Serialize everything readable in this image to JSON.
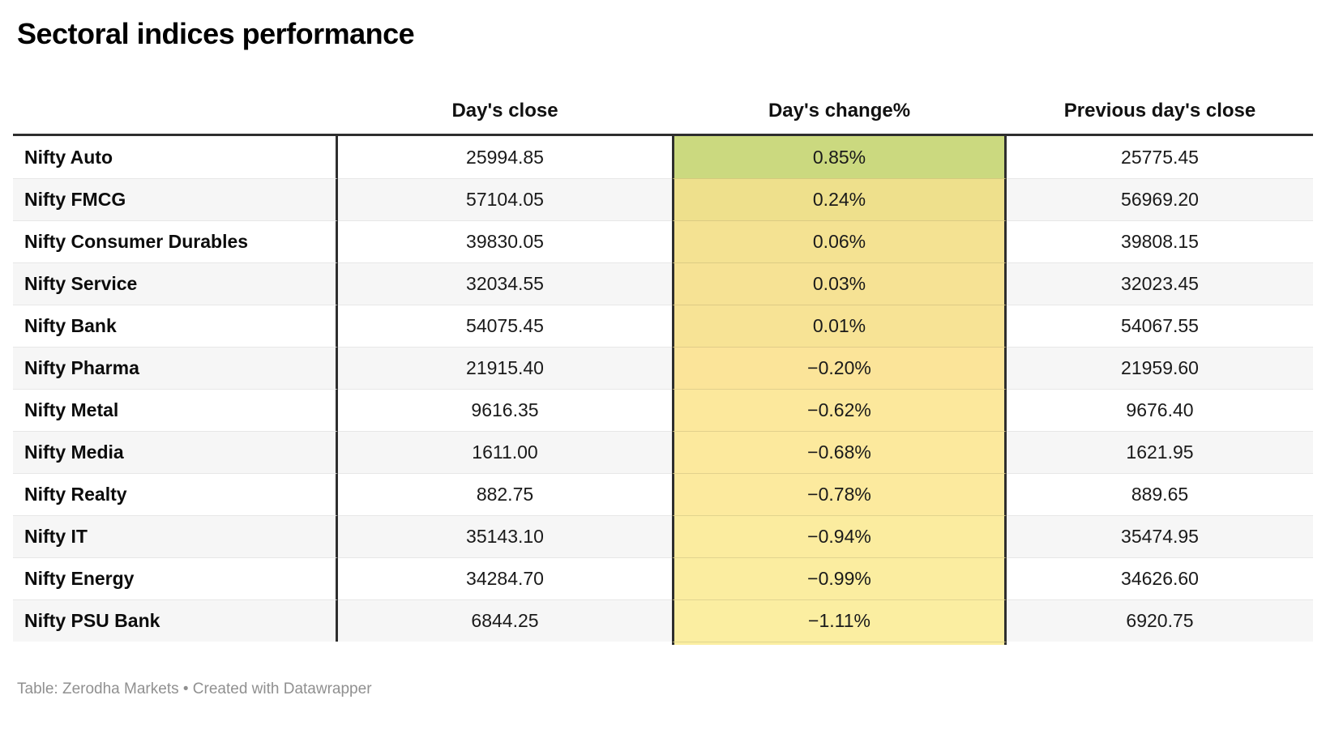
{
  "title": "Sectoral indices performance",
  "footer": "Table: Zerodha Markets • Created with Datawrapper",
  "colors": {
    "border_dark": "#2e2e2e",
    "row_alt_bg": "#f6f6f6",
    "row_separator": "#e7e7e7",
    "footer_text": "#909090",
    "heat_positive_max": "#cbd97f",
    "heat_negative_min": "#fbeea1"
  },
  "chart_data": {
    "type": "table",
    "title": "Sectoral indices performance",
    "columns": [
      "",
      "Day's close",
      "Day's change%",
      "Previous day's close"
    ],
    "rows": [
      {
        "name": "Nifty Auto",
        "close": "25994.85",
        "change": "0.85%",
        "change_value": 0.85,
        "prev": "25775.45",
        "change_bg": "#cbd97f"
      },
      {
        "name": "Nifty FMCG",
        "close": "57104.05",
        "change": "0.24%",
        "change_value": 0.24,
        "prev": "56969.20",
        "change_bg": "#eee08c"
      },
      {
        "name": "Nifty Consumer Durables",
        "close": "39830.05",
        "change": "0.06%",
        "change_value": 0.06,
        "prev": "39808.15",
        "change_bg": "#f4e292"
      },
      {
        "name": "Nifty Service",
        "close": "32034.55",
        "change": "0.03%",
        "change_value": 0.03,
        "prev": "32023.45",
        "change_bg": "#f6e294"
      },
      {
        "name": "Nifty Bank",
        "close": "54075.45",
        "change": "0.01%",
        "change_value": 0.01,
        "prev": "54067.55",
        "change_bg": "#f7e395"
      },
      {
        "name": "Nifty Pharma",
        "close": "21915.40",
        "change": "−0.20%",
        "change_value": -0.2,
        "prev": "21959.60",
        "change_bg": "#fbe499"
      },
      {
        "name": "Nifty Metal",
        "close": "9616.35",
        "change": "−0.62%",
        "change_value": -0.62,
        "prev": "9676.40",
        "change_bg": "#fce89c"
      },
      {
        "name": "Nifty Media",
        "close": "1611.00",
        "change": "−0.68%",
        "change_value": -0.68,
        "prev": "1621.95",
        "change_bg": "#fce99d"
      },
      {
        "name": "Nifty Realty",
        "close": "882.75",
        "change": "−0.78%",
        "change_value": -0.78,
        "prev": "889.65",
        "change_bg": "#fcea9e"
      },
      {
        "name": "Nifty IT",
        "close": "35143.10",
        "change": "−0.94%",
        "change_value": -0.94,
        "prev": "35474.95",
        "change_bg": "#fbec9f"
      },
      {
        "name": "Nifty Energy",
        "close": "34284.70",
        "change": "−0.99%",
        "change_value": -0.99,
        "prev": "34626.60",
        "change_bg": "#fbeda0"
      },
      {
        "name": "Nifty PSU Bank",
        "close": "6844.25",
        "change": "−1.11%",
        "change_value": -1.11,
        "prev": "6920.75",
        "change_bg": "#fbeea1"
      }
    ]
  }
}
